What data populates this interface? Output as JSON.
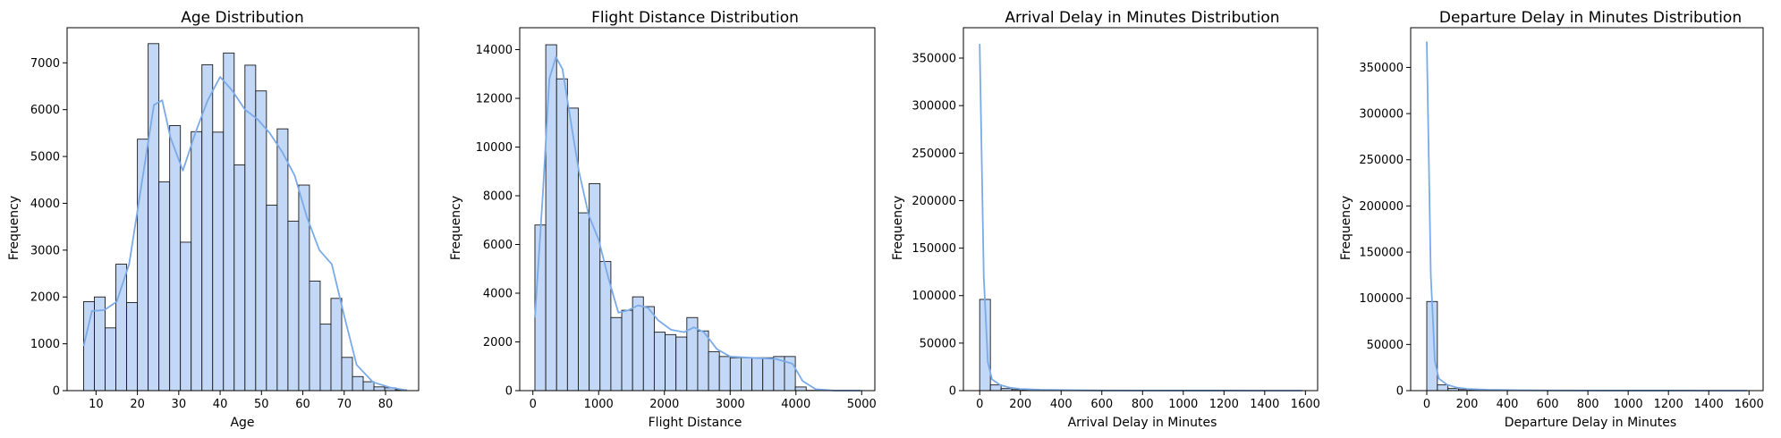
{
  "figure": {
    "background": "#ffffff",
    "bar_fill": "#c3d8f6",
    "bar_edge": "#1a1a1a",
    "kde_color": "#7aaae8"
  },
  "chart_data": [
    {
      "type": "bar",
      "title": "Age Distribution",
      "xlabel": "Age",
      "ylabel": "Frequency",
      "xlim": [
        3,
        88
      ],
      "ylim": [
        0,
        7750
      ],
      "xticks": [
        10,
        20,
        30,
        40,
        50,
        60,
        70,
        80
      ],
      "yticks": [
        0,
        1000,
        2000,
        3000,
        4000,
        5000,
        6000,
        7000
      ],
      "bin_start": 7,
      "bin_width": 2.6,
      "values": [
        1900,
        2000,
        1340,
        2700,
        1880,
        5370,
        7410,
        4460,
        5660,
        3170,
        5530,
        6960,
        5520,
        7210,
        4820,
        6950,
        6400,
        3960,
        5590,
        3620,
        4390,
        2340,
        1420,
        1970,
        710,
        300,
        190,
        80,
        60,
        20
      ],
      "kde": [
        [
          7,
          950
        ],
        [
          9,
          1700
        ],
        [
          12,
          1720
        ],
        [
          15,
          1900
        ],
        [
          18,
          2700
        ],
        [
          21,
          4400
        ],
        [
          24,
          6100
        ],
        [
          26,
          6200
        ],
        [
          28,
          5400
        ],
        [
          31,
          4700
        ],
        [
          34,
          5500
        ],
        [
          37,
          6200
        ],
        [
          40,
          6700
        ],
        [
          43,
          6400
        ],
        [
          46,
          6000
        ],
        [
          49,
          5800
        ],
        [
          52,
          5500
        ],
        [
          55,
          5100
        ],
        [
          58,
          4600
        ],
        [
          61,
          3700
        ],
        [
          64,
          3000
        ],
        [
          67,
          2700
        ],
        [
          70,
          1600
        ],
        [
          73,
          550
        ],
        [
          77,
          180
        ],
        [
          81,
          70
        ],
        [
          85,
          10
        ]
      ]
    },
    {
      "type": "bar",
      "title": "Flight Distance Distribution",
      "xlabel": "Flight Distance",
      "ylabel": "Frequency",
      "xlim": [
        -200,
        5200
      ],
      "ylim": [
        0,
        14900
      ],
      "xticks": [
        0,
        1000,
        2000,
        3000,
        4000,
        5000
      ],
      "yticks": [
        0,
        2000,
        4000,
        6000,
        8000,
        10000,
        12000,
        14000
      ],
      "bin_start": 31,
      "bin_width": 165,
      "values": [
        6800,
        14200,
        12800,
        11600,
        7300,
        8500,
        5300,
        3000,
        3300,
        3850,
        3450,
        2400,
        2300,
        2200,
        3000,
        2450,
        1600,
        1400,
        1350,
        1350,
        1350,
        1350,
        1400,
        1400,
        150,
        10,
        5,
        5,
        5,
        5
      ],
      "kde": [
        [
          31,
          3000
        ],
        [
          150,
          8000
        ],
        [
          250,
          12800
        ],
        [
          350,
          13700
        ],
        [
          450,
          13200
        ],
        [
          550,
          11500
        ],
        [
          700,
          9000
        ],
        [
          850,
          7200
        ],
        [
          1000,
          6200
        ],
        [
          1150,
          4600
        ],
        [
          1300,
          3200
        ],
        [
          1450,
          3300
        ],
        [
          1600,
          3500
        ],
        [
          1750,
          3400
        ],
        [
          1900,
          2900
        ],
        [
          2100,
          2500
        ],
        [
          2300,
          2400
        ],
        [
          2450,
          2600
        ],
        [
          2600,
          2400
        ],
        [
          2800,
          1700
        ],
        [
          3000,
          1400
        ],
        [
          3300,
          1350
        ],
        [
          3700,
          1300
        ],
        [
          3950,
          1100
        ],
        [
          4100,
          400
        ],
        [
          4300,
          60
        ],
        [
          4600,
          0
        ],
        [
          4983,
          0
        ]
      ]
    },
    {
      "type": "bar",
      "title": "Arrival Delay in Minutes Distribution",
      "xlabel": "Arrival Delay in Minutes",
      "ylabel": "Frequency",
      "xlim": [
        -80,
        1660
      ],
      "ylim": [
        0,
        382000
      ],
      "xticks": [
        0,
        200,
        400,
        600,
        800,
        1000,
        1200,
        1400,
        1600
      ],
      "yticks": [
        0,
        50000,
        100000,
        150000,
        200000,
        250000,
        300000,
        350000
      ],
      "bin_start": 0,
      "bin_width": 52.6,
      "values": [
        96000,
        6000,
        2200,
        1100,
        700,
        450,
        300,
        200,
        150,
        100,
        80,
        60,
        50,
        40,
        30,
        25,
        20,
        15,
        10,
        10,
        10,
        5,
        5,
        5,
        5,
        5,
        5,
        5,
        5,
        5
      ],
      "kde": [
        [
          0,
          365000
        ],
        [
          20,
          120000
        ],
        [
          40,
          30000
        ],
        [
          60,
          12000
        ],
        [
          100,
          6000
        ],
        [
          150,
          3000
        ],
        [
          200,
          1800
        ],
        [
          300,
          900
        ],
        [
          450,
          400
        ],
        [
          600,
          200
        ],
        [
          800,
          100
        ],
        [
          1000,
          60
        ],
        [
          1200,
          40
        ],
        [
          1400,
          30
        ],
        [
          1584,
          20
        ]
      ]
    },
    {
      "type": "bar",
      "title": "Departure Delay in Minutes Distribution",
      "xlabel": "Departure Delay in Minutes",
      "ylabel": "Frequency",
      "xlim": [
        -80,
        1670
      ],
      "ylim": [
        0,
        393000
      ],
      "xticks": [
        0,
        200,
        400,
        600,
        800,
        1000,
        1200,
        1400,
        1600
      ],
      "yticks": [
        0,
        50000,
        100000,
        150000,
        200000,
        250000,
        300000,
        350000
      ],
      "bin_start": 0,
      "bin_width": 52.6,
      "values": [
        96500,
        6200,
        2300,
        1150,
        720,
        460,
        310,
        210,
        150,
        110,
        80,
        60,
        50,
        40,
        30,
        25,
        20,
        15,
        10,
        10,
        10,
        5,
        5,
        5,
        5,
        5,
        5,
        5,
        5,
        5
      ],
      "kde": [
        [
          0,
          378000
        ],
        [
          20,
          125000
        ],
        [
          40,
          32000
        ],
        [
          60,
          13000
        ],
        [
          100,
          6500
        ],
        [
          150,
          3200
        ],
        [
          200,
          1900
        ],
        [
          300,
          950
        ],
        [
          450,
          420
        ],
        [
          600,
          210
        ],
        [
          800,
          110
        ],
        [
          1000,
          60
        ],
        [
          1200,
          40
        ],
        [
          1400,
          30
        ],
        [
          1592,
          20
        ]
      ]
    }
  ]
}
